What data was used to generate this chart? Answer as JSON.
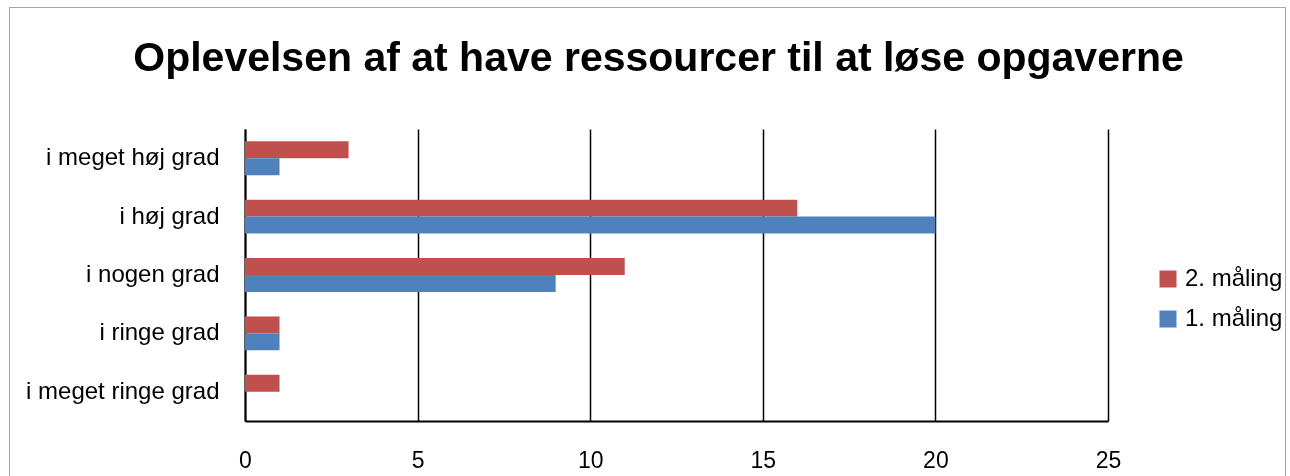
{
  "chart_data": {
    "type": "bar",
    "orientation": "horizontal",
    "title": "Oplevelsen af at have ressourcer til at løse opgaverne",
    "categories": [
      "i meget høj grad",
      "i høj grad",
      "i nogen grad",
      "i ringe grad",
      "i meget ringe grad"
    ],
    "series": [
      {
        "name": "2. måling",
        "color": "#c0504d",
        "values": [
          3,
          16,
          11,
          1,
          1
        ]
      },
      {
        "name": "1. måling",
        "color": "#4f81bd",
        "values": [
          1,
          20,
          9,
          1,
          null
        ]
      }
    ],
    "xlim": [
      0,
      25
    ],
    "xticks": [
      0,
      5,
      10,
      15,
      20,
      25
    ],
    "grid": "x",
    "legend": "right"
  }
}
